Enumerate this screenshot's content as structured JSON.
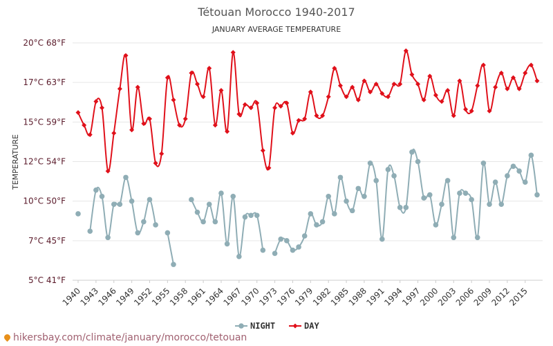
{
  "chart_data": {
    "type": "line",
    "title": "Tétouan Morocco 1940-2017",
    "subtitle": "JANUARY AVERAGE TEMPERATURE",
    "ylabel": "TEMPERATURE",
    "xlabel": "",
    "ylim": [
      5,
      20
    ],
    "xlim": [
      1940,
      2017
    ],
    "grid": true,
    "legend_position": "bottom-center",
    "y_ticks": [
      {
        "value": 5,
        "label": "5°C 41°F"
      },
      {
        "value": 7.5,
        "label": "7°C 45°F"
      },
      {
        "value": 10,
        "label": "10°C 50°F"
      },
      {
        "value": 12.5,
        "label": "12°C 54°F"
      },
      {
        "value": 15,
        "label": "15°C 59°F"
      },
      {
        "value": 17.5,
        "label": "17°C 63°F"
      },
      {
        "value": 20,
        "label": "20°C 68°F"
      }
    ],
    "x_ticks": [
      1940,
      1943,
      1946,
      1949,
      1952,
      1955,
      1958,
      1961,
      1964,
      1967,
      1970,
      1973,
      1976,
      1979,
      1982,
      1985,
      1988,
      1991,
      1994,
      1997,
      2000,
      2003,
      2006,
      2009,
      2012,
      2015
    ],
    "x": [
      1940,
      1941,
      1942,
      1943,
      1944,
      1945,
      1946,
      1947,
      1948,
      1949,
      1950,
      1951,
      1952,
      1953,
      1954,
      1955,
      1956,
      1957,
      1958,
      1959,
      1960,
      1961,
      1962,
      1963,
      1964,
      1965,
      1966,
      1967,
      1968,
      1969,
      1970,
      1971,
      1972,
      1973,
      1974,
      1975,
      1976,
      1977,
      1978,
      1979,
      1980,
      1981,
      1982,
      1983,
      1984,
      1985,
      1986,
      1987,
      1988,
      1989,
      1990,
      1991,
      1992,
      1993,
      1994,
      1995,
      1996,
      1997,
      1998,
      1999,
      2000,
      2001,
      2002,
      2003,
      2004,
      2005,
      2006,
      2007,
      2008,
      2009,
      2010,
      2011,
      2012,
      2013,
      2014,
      2015,
      2016,
      2017
    ],
    "series": [
      {
        "name": "NIGHT",
        "color": "#8fadb5",
        "values": [
          9.2,
          null,
          8.1,
          10.7,
          10.3,
          7.7,
          9.8,
          9.8,
          11.5,
          10.0,
          8.0,
          8.7,
          10.1,
          8.5,
          null,
          8.0,
          6.0,
          null,
          null,
          10.1,
          9.3,
          8.7,
          9.8,
          8.7,
          10.5,
          7.3,
          10.3,
          6.5,
          9.0,
          9.1,
          9.1,
          6.9,
          null,
          6.7,
          7.6,
          7.5,
          6.9,
          7.1,
          7.8,
          9.2,
          8.5,
          8.7,
          10.3,
          9.2,
          11.5,
          10.0,
          9.4,
          10.8,
          10.3,
          12.4,
          11.3,
          7.6,
          12.0,
          11.6,
          9.6,
          9.6,
          13.1,
          12.5,
          10.2,
          10.4,
          8.5,
          9.8,
          11.3,
          7.7,
          10.5,
          10.5,
          10.1,
          7.7,
          12.4,
          9.8,
          11.2,
          9.8,
          11.6,
          12.2,
          11.9,
          11.2,
          12.9,
          10.4
        ]
      },
      {
        "name": "DAY",
        "color": "#e0101a",
        "values": [
          15.6,
          14.8,
          14.2,
          16.3,
          15.9,
          11.9,
          14.3,
          17.1,
          19.2,
          14.5,
          17.2,
          14.9,
          15.2,
          12.4,
          13.0,
          17.8,
          16.4,
          14.8,
          15.2,
          18.1,
          17.4,
          16.6,
          18.4,
          14.8,
          17.0,
          14.4,
          19.4,
          15.5,
          16.1,
          15.9,
          16.2,
          13.2,
          12.1,
          15.9,
          16.0,
          16.2,
          14.3,
          15.1,
          15.2,
          16.9,
          15.4,
          15.4,
          16.6,
          18.4,
          17.3,
          16.6,
          17.2,
          16.4,
          17.6,
          16.9,
          17.4,
          16.8,
          16.6,
          17.4,
          17.4,
          19.5,
          18.0,
          17.4,
          16.4,
          17.9,
          16.7,
          16.3,
          17.0,
          15.4,
          17.6,
          15.8,
          15.7,
          17.3,
          18.6,
          15.7,
          17.2,
          18.1,
          17.1,
          17.8,
          17.1,
          18.1,
          18.6,
          17.6
        ]
      }
    ]
  },
  "credit": "hikersbay.com/climate/january/morocco/tetouan"
}
